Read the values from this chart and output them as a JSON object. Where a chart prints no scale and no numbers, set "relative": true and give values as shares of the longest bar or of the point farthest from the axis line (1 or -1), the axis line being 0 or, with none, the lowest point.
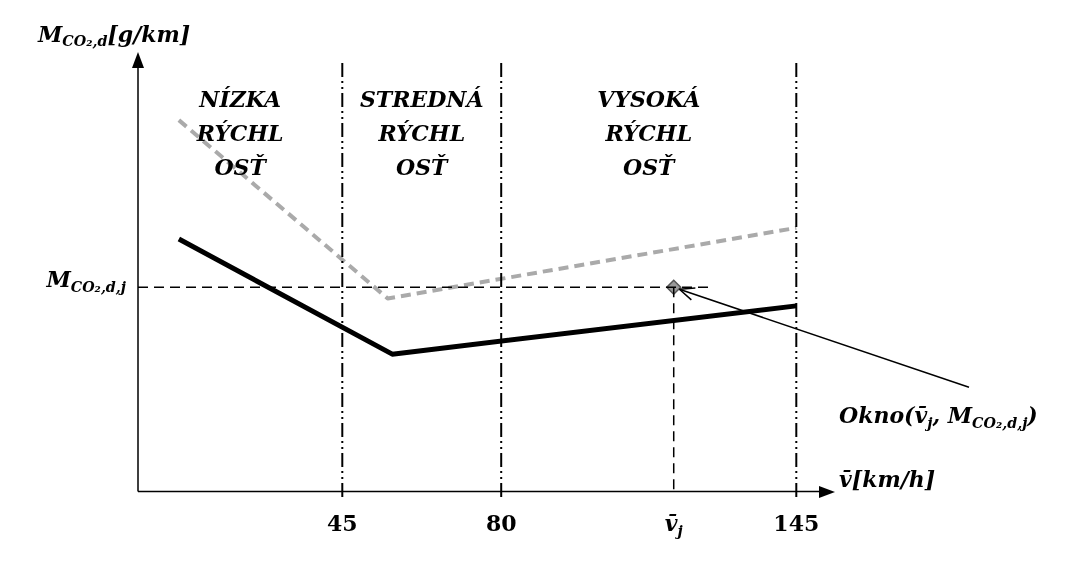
{
  "chart_data": {
    "type": "line",
    "relative": true,
    "xlabel": "v̄[km/h]",
    "ylabel": "M$_{CO₂,d}$[g/km]",
    "xlim": [
      0,
      150
    ],
    "xticks": [
      45,
      80,
      145
    ],
    "legend": false,
    "grid": false,
    "series": [
      {
        "color": "#000000",
        "line_style": "solid",
        "marker": "none",
        "x": [
          9,
          56,
          145
        ],
        "values": [
          0.68,
          0.37,
          0.5
        ]
      },
      {
        "color": "#aaaaaa",
        "line_style": "dashed",
        "marker": "none",
        "x": [
          9,
          55,
          145
        ],
        "values": [
          1,
          0.52,
          0.71
        ]
      },
      {
        "type": "scatter",
        "color": "#999999",
        "marker": "diamond",
        "x": [
          118
        ],
        "values": [
          0.55
        ]
      }
    ],
    "ref_lines": [
      {
        "axis": "x",
        "value": 45,
        "line_style": "dashdot",
        "color": "#000000"
      },
      {
        "axis": "x",
        "value": 80,
        "line_style": "dashdot",
        "color": "#000000"
      },
      {
        "axis": "x",
        "value": 145,
        "line_style": "dashdot",
        "color": "#000000"
      },
      {
        "axis": "x",
        "value": 118,
        "label": "v̄$_{j}$",
        "line_style": "dashed",
        "color": "#000000"
      },
      {
        "axis": "y",
        "value": 0.55,
        "label": "M$_{CO₂,d,j}$",
        "line_style": "dashed",
        "color": "#000000"
      }
    ],
    "annotations": [
      "NÍZKA RÝCHL OSŤ",
      "STREDNÁ RÝCHL OSŤ",
      "VYSOKÁ RÝCHL OSŤ",
      {
        "text": "Okno(v̄$_{j}$, M$_{CO₂,d,j}$)",
        "x": 118,
        "y": 0.55
      }
    ]
  }
}
